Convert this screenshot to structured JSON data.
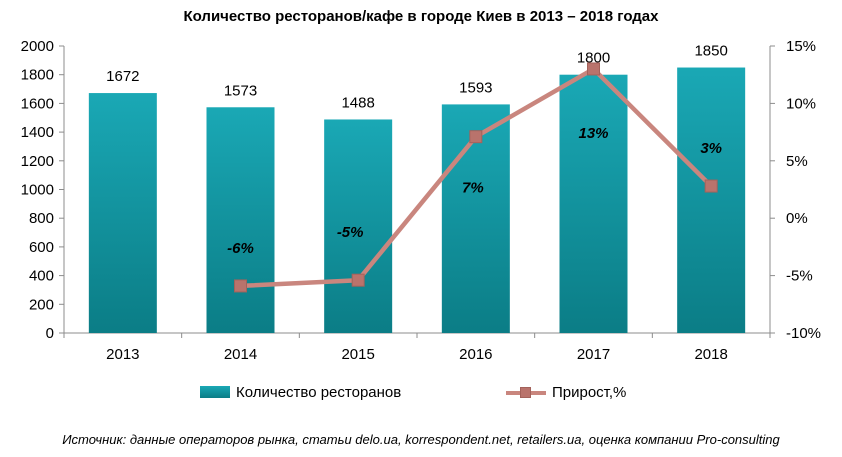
{
  "chart_data": {
    "type": "bar",
    "title": "Количество ресторанов/кафе в городе Киев в 2013 – 2018 годах",
    "categories": [
      "2013",
      "2014",
      "2015",
      "2016",
      "2017",
      "2018"
    ],
    "series": [
      {
        "name": "Количество ресторанов",
        "type": "bar",
        "axis": "left",
        "values": [
          1672,
          1573,
          1488,
          1593,
          1800,
          1850
        ],
        "labels": [
          "1672",
          "1573",
          "1488",
          "1593",
          "1800",
          "1850"
        ]
      },
      {
        "name": "Прирост,%",
        "type": "line",
        "axis": "right",
        "values": [
          null,
          -5.9,
          -5.4,
          7.1,
          13.0,
          2.8
        ],
        "labels": [
          "",
          "-6%",
          "-5%",
          "7%",
          "13%",
          "3%"
        ]
      }
    ],
    "y_left": {
      "min": 0,
      "max": 2000,
      "step": 200,
      "ticks": [
        "0",
        "200",
        "400",
        "600",
        "800",
        "1000",
        "1200",
        "1400",
        "1600",
        "1800",
        "2000"
      ]
    },
    "y_right": {
      "min": -10,
      "max": 15,
      "step": 5,
      "ticks": [
        "-10%",
        "-5%",
        "0%",
        "5%",
        "10%",
        "15%"
      ]
    },
    "grid": false,
    "legend_position": "bottom",
    "colors": {
      "bar_top": "#1aa8b5",
      "bar_bottom": "#0b7d86",
      "line": "#c9867e",
      "marker": "#b9736c"
    }
  },
  "legend": {
    "bar_label": "Количество ресторанов",
    "line_label": "Прирост,%"
  },
  "source": "Источник: данные операторов рынка, статьи delo.ua, korrespondent.net, retailers.ua, оценка компании Pro-consulting"
}
